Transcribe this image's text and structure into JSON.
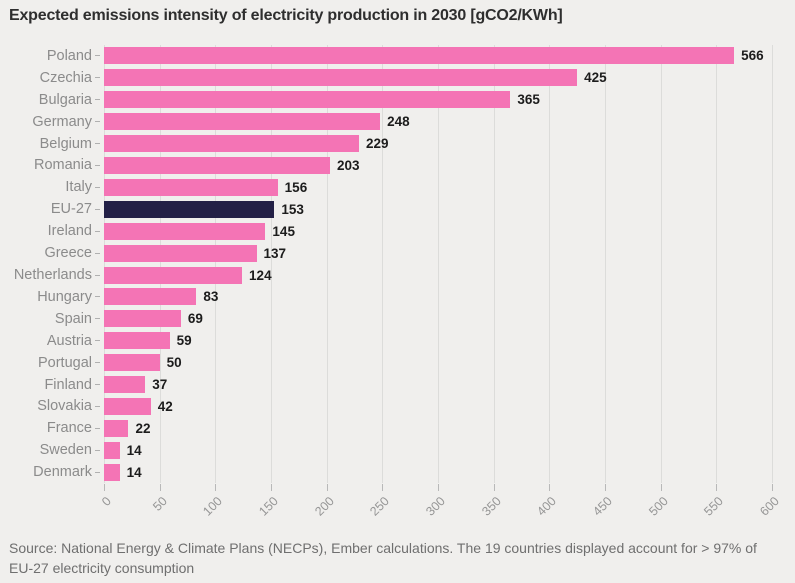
{
  "title": "Expected emissions intensity of electricity production in 2030 [gCO2/KWh]",
  "source_text": "Source: National Energy & Climate Plans (NECPs), Ember calculations. The 19 countries displayed account for > 97% of EU-27 electricity consumption",
  "colors": {
    "background": "#f0efed",
    "bar_pink": "#f474b5",
    "bar_highlight_navy": "#232046",
    "gridline": "#dcdcda",
    "category_label": "#8b8b8b",
    "value_label": "#1c1c1c",
    "axis_label": "#969696",
    "title_text": "#2e2e2e",
    "source_text": "#6f6f6f"
  },
  "chart_data": {
    "type": "bar",
    "orientation": "horizontal",
    "title": "Expected emissions intensity of electricity production in 2030 [gCO2/KWh]",
    "xlabel": "",
    "ylabel": "",
    "xlim": [
      0,
      600
    ],
    "xticks": [
      0,
      50,
      100,
      150,
      200,
      250,
      300,
      350,
      400,
      450,
      500,
      550,
      600
    ],
    "grid": true,
    "legend": false,
    "highlight_category": "EU-27",
    "categories": [
      "Poland",
      "Czechia",
      "Bulgaria",
      "Germany",
      "Belgium",
      "Romania",
      "Italy",
      "EU-27",
      "Ireland",
      "Greece",
      "Netherlands",
      "Hungary",
      "Spain",
      "Austria",
      "Portugal",
      "Finland",
      "Slovakia",
      "France",
      "Sweden",
      "Denmark"
    ],
    "values": [
      566,
      425,
      365,
      248,
      229,
      203,
      156,
      153,
      145,
      137,
      124,
      83,
      69,
      59,
      50,
      37,
      42,
      22,
      14,
      14
    ]
  }
}
